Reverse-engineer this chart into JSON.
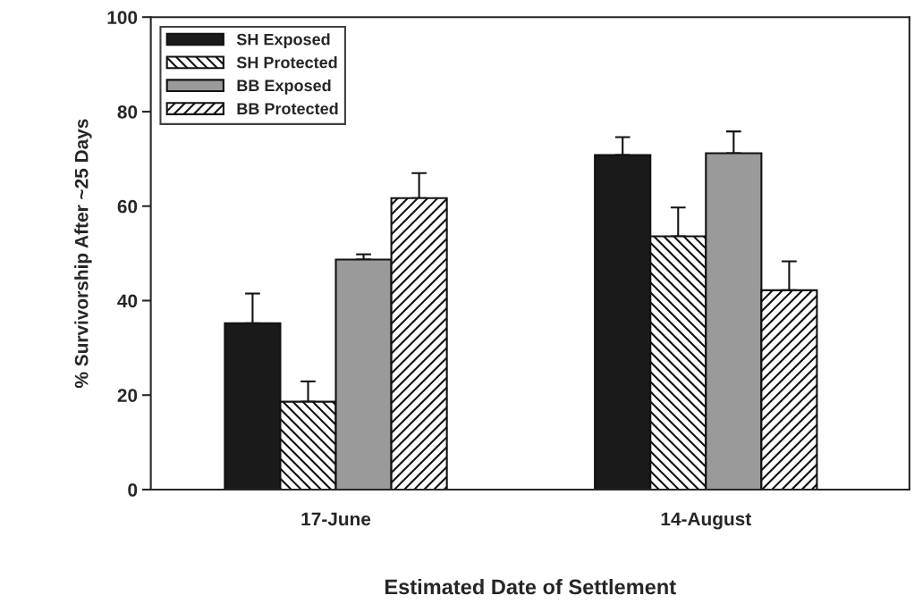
{
  "chart_data": {
    "type": "bar",
    "xlabel": "Estimated Date of Settlement",
    "ylabel": "% Survivorship After ~25 Days",
    "categories": [
      "17-June",
      "14-August"
    ],
    "series": [
      {
        "name": "SH Exposed",
        "color": "#1a1a1a",
        "values": [
          35.2,
          70.8
        ],
        "errors": [
          [
            35.2,
            41.5
          ],
          [
            70.8,
            74.6
          ]
        ]
      },
      {
        "name": "SH Protected",
        "color": "#111111",
        "values": [
          18.6,
          53.6
        ],
        "errors": [
          [
            18.6,
            22.9
          ],
          [
            53.6,
            59.7
          ]
        ]
      },
      {
        "name": "BB Exposed",
        "color": "#9a9a9a",
        "values": [
          48.7,
          71.2
        ],
        "errors": [
          [
            48.7,
            49.8
          ],
          [
            71.2,
            75.8
          ]
        ]
      },
      {
        "name": "BB Protected",
        "color": "#111111",
        "values": [
          61.7,
          42.2
        ],
        "errors": [
          [
            61.7,
            67.0
          ],
          [
            42.2,
            48.3
          ]
        ]
      }
    ],
    "ylim": [
      0,
      100
    ],
    "yticks": [
      0,
      20,
      40,
      60,
      80,
      100
    ],
    "grid": false,
    "legend": "top left"
  }
}
